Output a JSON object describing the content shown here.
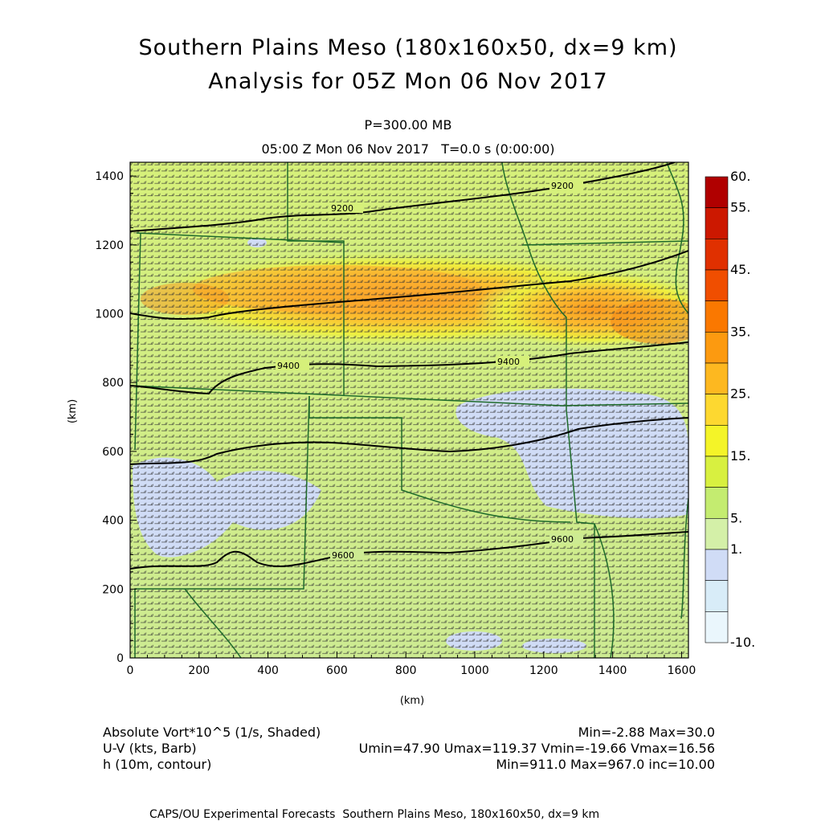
{
  "titles": {
    "line1": "Southern Plains Meso (180x160x50, dx=9 km)",
    "line2": "Analysis for 05Z Mon 06 Nov 2017",
    "level": "P=300.00 MB",
    "time": "05:00 Z Mon 06 Nov 2017   T=0.0 s (0:00:00)"
  },
  "axes": {
    "xlabel": "(km)",
    "ylabel": "(km)",
    "xrange": [
      0,
      1620
    ],
    "yrange": [
      0,
      1440
    ],
    "xticks": [
      "0",
      "200",
      "400",
      "600",
      "800",
      "1000",
      "1200",
      "1400",
      "1600"
    ],
    "yticks": [
      "0",
      "200",
      "400",
      "600",
      "800",
      "1000",
      "1200",
      "1400"
    ]
  },
  "colorbar": {
    "labels": [
      "60.",
      "55.",
      "45.",
      "35.",
      "25.",
      "15.",
      "5.",
      "1.",
      "-10."
    ],
    "colors": [
      "#b00000",
      "#cc1800",
      "#e03000",
      "#f04e00",
      "#fa7800",
      "#fc9a10",
      "#fdb820",
      "#fdd830",
      "#f4f428",
      "#d8f040",
      "#c4ec70",
      "#d4f0a8",
      "#d0dcf6",
      "#d8ecf8",
      "#eaf6fc"
    ]
  },
  "contours": {
    "labels": [
      "9200",
      "9200",
      "9400",
      "9400",
      "9600",
      "9600"
    ]
  },
  "legend": {
    "field1": "Absolute Vort*10^5 (1/s, Shaded)",
    "field1_stats": "Min=-2.88 Max=30.0",
    "field2": "U-V (kts, Barb)",
    "field2_stats": "Umin=47.90 Umax=119.37 Vmin=-19.66 Vmax=16.56",
    "field3": "h (10m, contour)",
    "field3_stats": "Min=911.0 Max=967.0 inc=10.00"
  },
  "footer": "CAPS/OU Experimental Forecasts  Southern Plains Meso, 180x160x50, dx=9 km"
}
